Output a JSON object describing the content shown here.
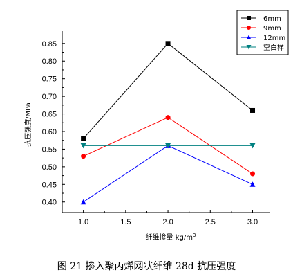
{
  "caption": "图 21  掺入聚丙烯网状纤维 28d 抗压强度",
  "chart_data": {
    "type": "line",
    "x": [
      1.0,
      2.0,
      3.0
    ],
    "xlabel": "纤维掺量 kg/m",
    "xlabel_sup": "3",
    "ylabel": "抗压强度/MPa",
    "xlim": [
      0.75,
      3.2
    ],
    "ylim": [
      0.37,
      0.885
    ],
    "xticks": [
      1.0,
      1.5,
      2.0,
      2.5,
      3.0
    ],
    "xtick_labels": [
      "1.0",
      "1.5",
      "2.0",
      "2.5",
      "3.0"
    ],
    "yticks": [
      0.4,
      0.45,
      0.5,
      0.55,
      0.6,
      0.65,
      0.7,
      0.75,
      0.8,
      0.85
    ],
    "ytick_labels": [
      "0.40",
      "0.45",
      "0.50",
      "0.55",
      "0.60",
      "0.65",
      "0.70",
      "0.75",
      "0.80",
      "0.85"
    ],
    "grid": false,
    "legend_position": "top-right",
    "series": [
      {
        "name": "6mm",
        "values": [
          0.58,
          0.85,
          0.66
        ],
        "color": "#000000",
        "marker": "square"
      },
      {
        "name": "9mm",
        "values": [
          0.53,
          0.64,
          0.48
        ],
        "color": "#ff0000",
        "marker": "circle"
      },
      {
        "name": "12mm",
        "values": [
          0.4,
          0.56,
          0.45
        ],
        "color": "#0000ff",
        "marker": "triangle-up"
      },
      {
        "name": "空白样",
        "values": [
          0.56,
          0.56,
          0.56
        ],
        "color": "#008080",
        "marker": "triangle-down"
      }
    ]
  }
}
